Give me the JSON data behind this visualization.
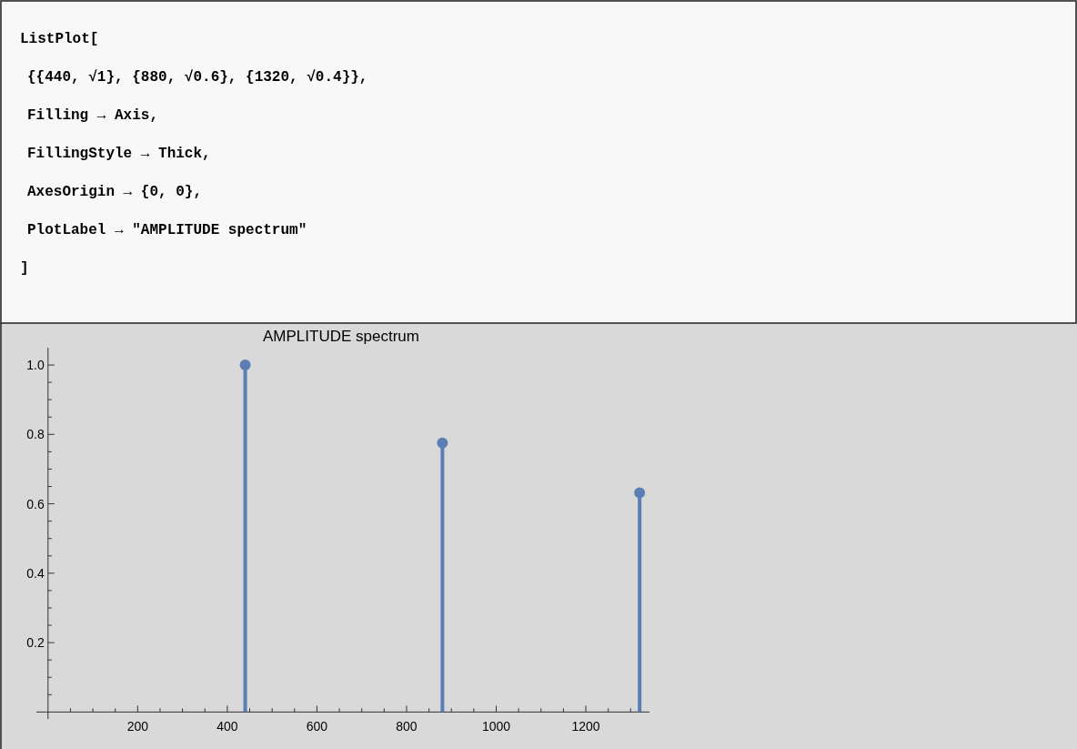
{
  "chart_data": {
    "type": "lollipop",
    "title": "AMPLITUDE spectrum",
    "x": [
      440,
      880,
      1320
    ],
    "series": [
      {
        "color": "#5b7fb5",
        "values": [
          1,
          0.775,
          0.632
        ]
      }
    ],
    "marker": "circle",
    "xlim": [
      -26,
      1342
    ],
    "ylim": [
      -0.02,
      1.05
    ],
    "xticks": [
      {
        "value": 50,
        "label": null
      },
      {
        "value": 100,
        "label": null
      },
      {
        "value": 150,
        "label": null
      },
      200,
      {
        "value": 250,
        "label": null
      },
      {
        "value": 300,
        "label": null
      },
      {
        "value": 350,
        "label": null
      },
      400,
      {
        "value": 450,
        "label": null
      },
      {
        "value": 500,
        "label": null
      },
      {
        "value": 550,
        "label": null
      },
      600,
      {
        "value": 650,
        "label": null
      },
      {
        "value": 700,
        "label": null
      },
      {
        "value": 750,
        "label": null
      },
      800,
      {
        "value": 850,
        "label": null
      },
      {
        "value": 900,
        "label": null
      },
      {
        "value": 950,
        "label": null
      },
      1000,
      {
        "value": 1050,
        "label": null
      },
      {
        "value": 1100,
        "label": null
      },
      {
        "value": 1150,
        "label": null
      },
      1200,
      {
        "value": 1250,
        "label": null
      },
      {
        "value": 1300,
        "label": null
      }
    ],
    "yticks": [
      {
        "value": 0.05,
        "label": null
      },
      {
        "value": 0.1,
        "label": null
      },
      {
        "value": 0.15,
        "label": null
      },
      0.2,
      {
        "value": 0.25,
        "label": null
      },
      {
        "value": 0.3,
        "label": null
      },
      {
        "value": 0.35,
        "label": null
      },
      {
        "value": 0.4,
        "label": "0.4"
      },
      {
        "value": 0.45,
        "label": null
      },
      {
        "value": 0.5,
        "label": null
      },
      {
        "value": 0.55,
        "label": null
      },
      {
        "value": 0.6,
        "label": "0.6"
      },
      {
        "value": 0.65,
        "label": null
      },
      {
        "value": 0.7,
        "label": null
      },
      {
        "value": 0.75,
        "label": null
      },
      0.8,
      {
        "value": 0.85,
        "label": null
      },
      {
        "value": 0.9,
        "label": null
      },
      {
        "value": 0.95,
        "label": null
      },
      {
        "value": 1,
        "label": "1.0"
      }
    ],
    "annotations": [
      "ListPlot[",
      "{{440, √1}, {880, √0.6}, {1320, √0.4}},",
      "Filling → Axis,",
      "FillingStyle → Thick,",
      "AxesOrigin → {0, 0},",
      "PlotLabel → \"AMPLITUDE spectrum\"",
      "]"
    ]
  }
}
